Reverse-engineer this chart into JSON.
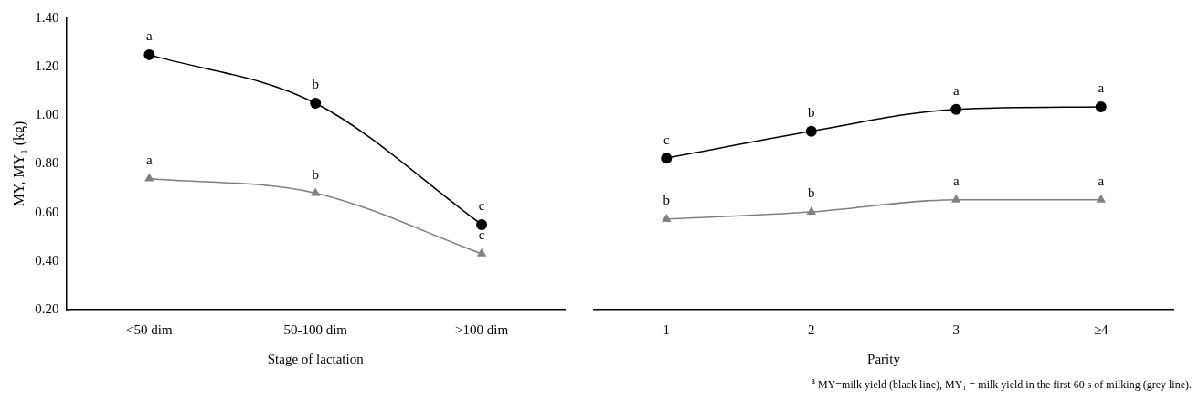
{
  "chart_data": [
    {
      "type": "line",
      "xlabel": "Stage of lactation",
      "ylabel": "MY, MY₁ (kg)",
      "categories": [
        "<50 dim",
        "50-100 dim",
        ">100 dim"
      ],
      "ylim": [
        0.2,
        1.4
      ],
      "yticks": [
        {
          "value": 0.2,
          "label": "0.20"
        },
        {
          "value": 0.4,
          "label": "0.40"
        },
        {
          "value": 0.6,
          "label": "0.60"
        },
        {
          "value": 0.8,
          "label": "0.80"
        },
        {
          "value": 1.0,
          "label": "1.00"
        },
        {
          "value": 1.2,
          "label": "1.20"
        },
        {
          "value": 1.4,
          "label": "1.40"
        }
      ],
      "grid": false,
      "legend": false,
      "line_style": "solid",
      "series": [
        {
          "color": "#000000",
          "marker": "circle",
          "values": [
            1.25,
            1.05,
            0.55
          ]
        },
        {
          "color": "#808080",
          "marker": "triangle",
          "values": [
            0.74,
            0.68,
            0.43
          ]
        }
      ],
      "annotations": [
        {
          "text": "a",
          "x": "<50 dim",
          "y": 1.25
        },
        {
          "text": "b",
          "x": "50-100 dim",
          "y": 1.05
        },
        {
          "text": "c",
          "x": ">100 dim",
          "y": 0.55
        },
        {
          "text": "a",
          "x": "<50 dim",
          "y": 0.74
        },
        {
          "text": "b",
          "x": "50-100 dim",
          "y": 0.68
        },
        {
          "text": "c",
          "x": ">100 dim",
          "y": 0.43
        }
      ]
    },
    {
      "type": "line",
      "xlabel": "Parity",
      "categories": [
        "1",
        "2",
        "3",
        "≥4"
      ],
      "ylim": [
        0.2,
        1.4
      ],
      "tick_labels": "x",
      "grid": false,
      "legend": false,
      "line_style": "solid",
      "series": [
        {
          "color": "#000000",
          "marker": "circle",
          "values": [
            0.82,
            0.93,
            1.02,
            1.03
          ]
        },
        {
          "color": "#808080",
          "marker": "triangle",
          "values": [
            0.57,
            0.6,
            0.65,
            0.65
          ]
        }
      ],
      "annotations": [
        {
          "text": "c",
          "x": "1",
          "y": 0.82
        },
        {
          "text": "b",
          "x": "2",
          "y": 0.93
        },
        {
          "text": "a",
          "x": "3",
          "y": 1.02
        },
        {
          "text": "a",
          "x": "≥4",
          "y": 1.03
        },
        {
          "text": "b",
          "x": "1",
          "y": 0.57
        },
        {
          "text": "b",
          "x": "2",
          "y": 0.6
        },
        {
          "text": "a",
          "x": "3",
          "y": 0.65
        },
        {
          "text": "a",
          "x": "≥4",
          "y": 0.65
        },
        "$^{a}$ MY=milk yield (black line), MY₁ = milk yield in the first 60 s of milking (grey line)."
      ]
    }
  ]
}
